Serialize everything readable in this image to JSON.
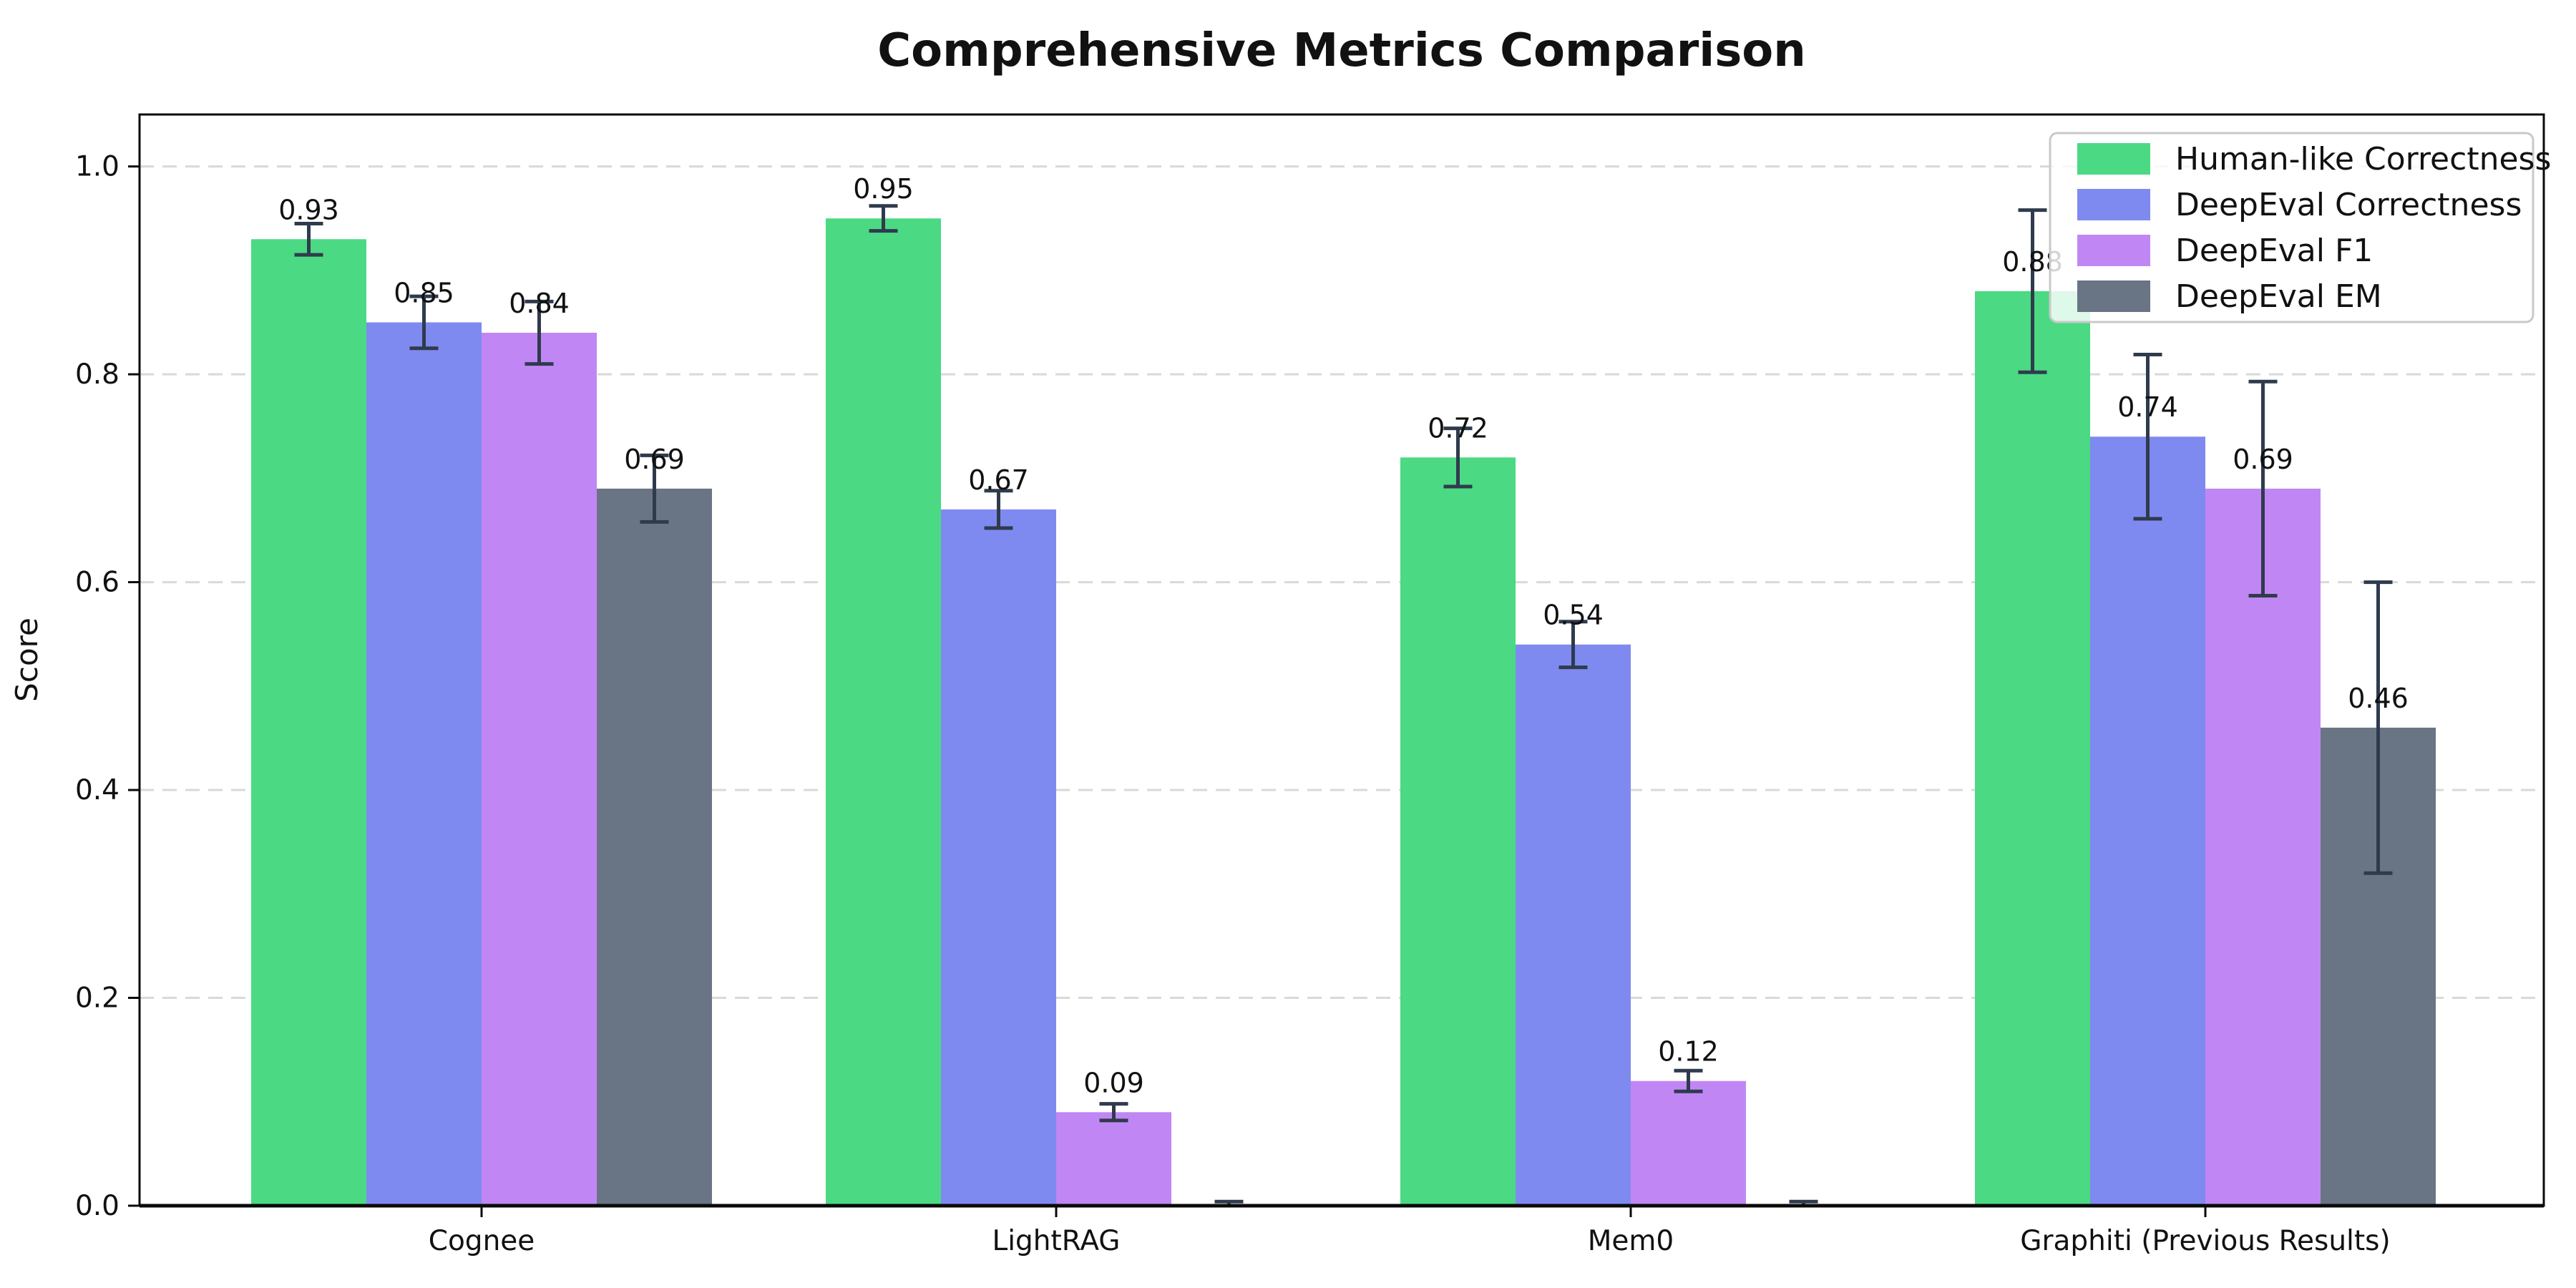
{
  "chart_data": {
    "type": "bar",
    "title": "Comprehensive Metrics Comparison",
    "ylabel": "Score",
    "xlabel": "",
    "categories": [
      "Cognee",
      "LightRAG",
      "Mem0",
      "Graphiti (Previous Results)"
    ],
    "series": [
      {
        "name": "Human-like Correctness",
        "color": "#4bd983",
        "values": [
          0.93,
          0.95,
          0.72,
          0.88
        ],
        "errors": [
          0.015,
          0.012,
          0.028,
          0.078
        ],
        "bar_labels": [
          "0.93",
          "0.95",
          "0.72",
          "0.88"
        ]
      },
      {
        "name": "DeepEval Correctness",
        "color": "#7f8af0",
        "values": [
          0.85,
          0.67,
          0.54,
          0.74
        ],
        "errors": [
          0.025,
          0.018,
          0.022,
          0.079
        ],
        "bar_labels": [
          "0.85",
          "0.67",
          "0.54",
          "0.74"
        ]
      },
      {
        "name": "DeepEval F1",
        "color": "#c087f4",
        "values": [
          0.84,
          0.09,
          0.12,
          0.69
        ],
        "errors": [
          0.03,
          0.008,
          0.01,
          0.103
        ],
        "bar_labels": [
          "0.84",
          "0.09",
          "0.12",
          "0.69"
        ]
      },
      {
        "name": "DeepEval EM",
        "color": "#697484",
        "values": [
          0.69,
          0.0,
          0.0,
          0.46
        ],
        "errors": [
          0.032,
          0.004,
          0.004,
          0.14
        ],
        "bar_labels": [
          "0.69",
          "",
          "",
          "0.46"
        ]
      }
    ],
    "y_ticks": [
      "0.0",
      "0.2",
      "0.4",
      "0.6",
      "0.8",
      "1.0"
    ],
    "y_tick_values": [
      0.0,
      0.2,
      0.4,
      0.6,
      0.8,
      1.0
    ],
    "ylim": [
      0,
      1.05
    ],
    "grid": "horizontal-dashed",
    "grid_color": "#d9d9d9",
    "axis_color": "#0a0a0a",
    "error_bar_color": "#2f3b4d",
    "legend_position": "upper right",
    "legend_border_color": "#c9c9c9"
  }
}
